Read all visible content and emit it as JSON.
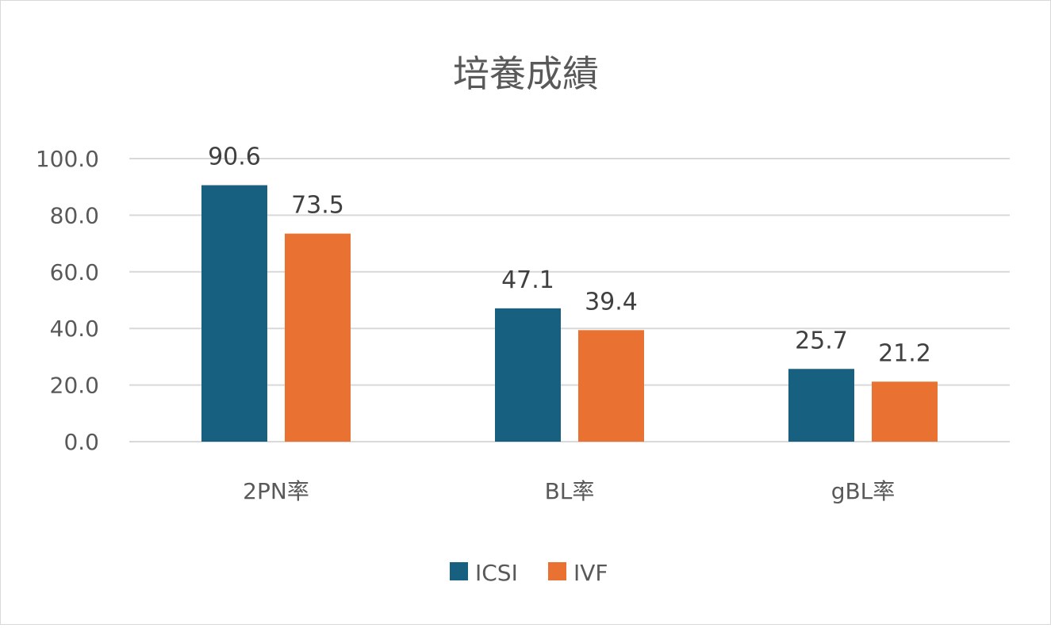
{
  "chart_data": {
    "type": "bar",
    "title": "培養成績",
    "categories": [
      "2PN率",
      "BL率",
      "gBL率"
    ],
    "series": [
      {
        "name": "ICSI",
        "values": [
          90.6,
          47.1,
          25.7
        ],
        "color": "#17607f"
      },
      {
        "name": "IVF",
        "values": [
          73.5,
          39.4,
          21.2
        ],
        "color": "#e97132"
      }
    ],
    "ylim": [
      0,
      100
    ],
    "yticks": [
      "0.0",
      "20.0",
      "40.0",
      "60.0",
      "80.0",
      "100.0"
    ],
    "value_labels": [
      [
        "90.6",
        "47.1",
        "25.7"
      ],
      [
        "73.5",
        "39.4",
        "21.2"
      ]
    ],
    "grid": true,
    "legend": "bottom"
  }
}
